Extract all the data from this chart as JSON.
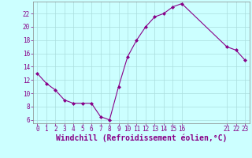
{
  "x": [
    0,
    1,
    2,
    3,
    4,
    5,
    6,
    7,
    8,
    9,
    10,
    11,
    12,
    13,
    14,
    15,
    16,
    21,
    22,
    23
  ],
  "y": [
    13.0,
    11.5,
    10.5,
    9.0,
    8.5,
    8.5,
    8.5,
    6.5,
    6.0,
    11.0,
    15.5,
    18.0,
    20.0,
    21.5,
    22.0,
    23.0,
    23.5,
    17.0,
    16.5,
    15.0
  ],
  "line_color": "#880088",
  "marker_color": "#880088",
  "bg_color": "#ccffff",
  "grid_color": "#aadddd",
  "xlabel": "Windchill (Refroidissement éolien,°C)",
  "xlabel_color": "#880088",
  "xticks": [
    0,
    1,
    2,
    3,
    4,
    5,
    6,
    7,
    8,
    9,
    10,
    11,
    12,
    13,
    14,
    15,
    16,
    21,
    22,
    23
  ],
  "yticks": [
    6,
    8,
    10,
    12,
    14,
    16,
    18,
    20,
    22
  ],
  "xlim": [
    -0.5,
    23.5
  ],
  "ylim": [
    5.5,
    23.8
  ],
  "tick_label_color": "#880088",
  "tick_label_fontsize": 5.5,
  "xlabel_fontsize": 7.0
}
